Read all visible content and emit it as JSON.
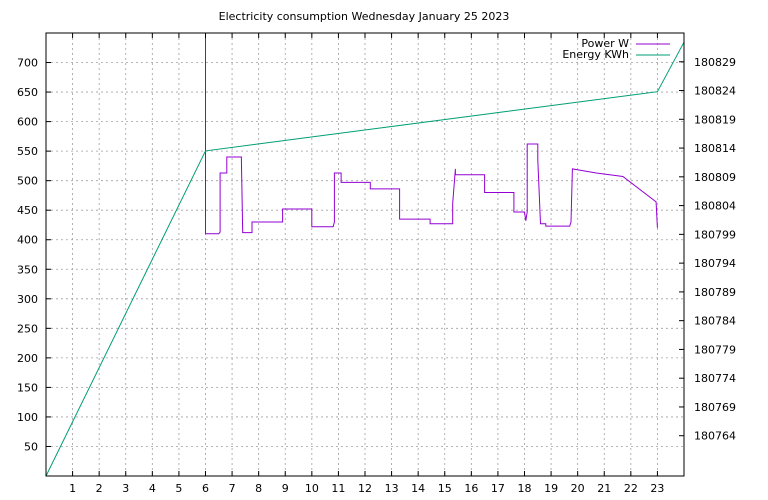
{
  "chart_data": {
    "type": "line",
    "title": "Electricity consumption Wednesday January 25 2023",
    "xlabel": "",
    "ylabel": "",
    "y2label": "",
    "xlim": [
      0,
      24
    ],
    "ylim": [
      0,
      750
    ],
    "y2lim": [
      180757,
      180834
    ],
    "x_ticks": [
      "1",
      "2",
      "3",
      "4",
      "5",
      "6",
      "7",
      "8",
      "9",
      "10",
      "11",
      "12",
      "13",
      "14",
      "15",
      "16",
      "17",
      "18",
      "19",
      "20",
      "21",
      "22",
      "23"
    ],
    "y_ticks": [
      "50",
      "100",
      "150",
      "200",
      "250",
      "300",
      "350",
      "400",
      "450",
      "500",
      "550",
      "600",
      "650",
      "700"
    ],
    "y2_ticks": [
      "180764",
      "180769",
      "180774",
      "180779",
      "180784",
      "180789",
      "180794",
      "180799",
      "180804",
      "180809",
      "180814",
      "180819",
      "180824",
      "180829"
    ],
    "grid": true,
    "legend_position": "top-right",
    "series": [
      {
        "name": "Power W",
        "axis": "y",
        "color": "#9400d3",
        "x": [
          6.0,
          6.0,
          6.0,
          6.5,
          6.55,
          6.55,
          6.8,
          6.8,
          7.35,
          7.35,
          7.4,
          7.75,
          7.75,
          8.9,
          8.9,
          10.0,
          10.0,
          10.8,
          10.85,
          10.85,
          11.1,
          11.1,
          12.2,
          12.2,
          13.3,
          13.3,
          14.45,
          14.45,
          15.3,
          15.3,
          15.4,
          15.4,
          16.5,
          16.5,
          17.6,
          17.6,
          18.0,
          18.05,
          18.1,
          18.1,
          18.5,
          18.5,
          18.6,
          18.8,
          18.8,
          19.7,
          19.75,
          19.8,
          20.7,
          20.7,
          21.7,
          21.7,
          22.95,
          22.95,
          23.0
        ],
        "y": [
          750,
          410,
          410,
          410,
          413,
          513,
          513,
          540,
          540,
          535,
          412,
          412,
          430,
          430,
          452,
          452,
          422,
          422,
          430,
          513,
          513,
          497,
          497,
          486,
          486,
          435,
          435,
          427,
          427,
          462,
          520,
          510,
          510,
          480,
          480,
          447,
          447,
          432,
          447,
          562,
          562,
          535,
          427,
          427,
          423,
          423,
          430,
          520,
          513,
          513,
          507,
          507,
          464,
          464,
          420
        ]
      },
      {
        "name": "Energy KWh",
        "axis": "y2",
        "color": "#009e73",
        "x": [
          0,
          6.0,
          23.0,
          24.0
        ],
        "y": [
          180757,
          180813.5,
          180823.8,
          180832.4
        ]
      }
    ]
  }
}
